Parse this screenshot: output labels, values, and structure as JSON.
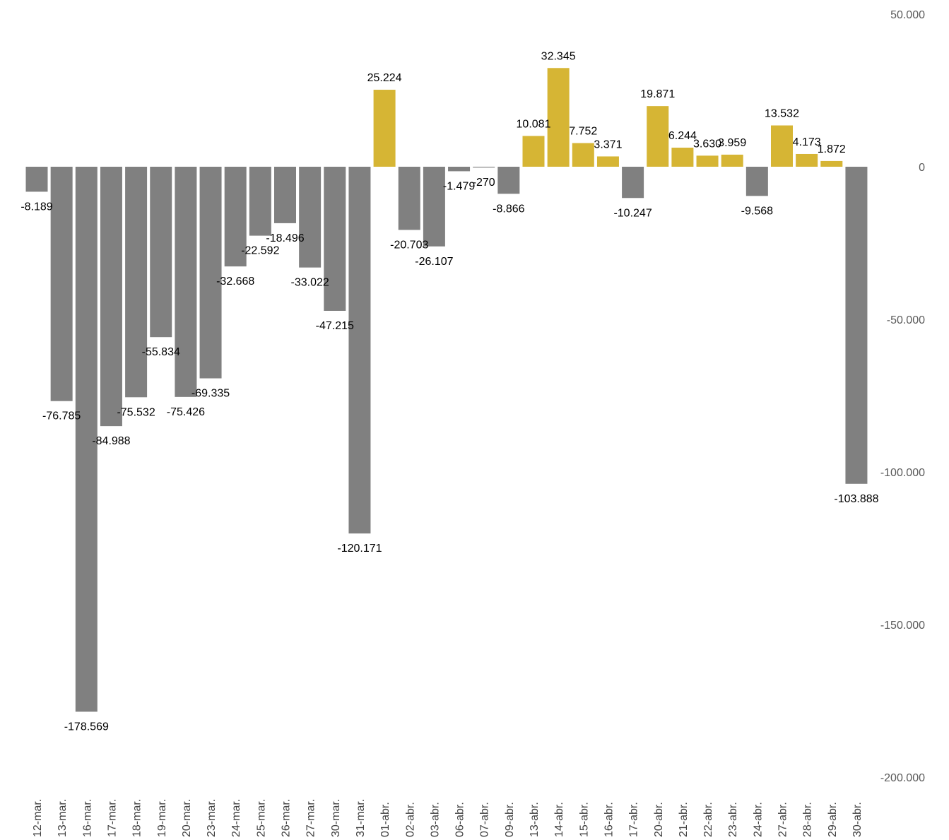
{
  "chart_data": {
    "type": "bar",
    "title": "",
    "xlabel": "",
    "ylabel": "",
    "ylim": [
      -200000,
      50000
    ],
    "yticks": [
      50000,
      0,
      -50000,
      -100000,
      -150000,
      -200000
    ],
    "ytick_labels": [
      "50.000",
      "0",
      "-50.000",
      "-100.000",
      "-150.000",
      "-200.000"
    ],
    "y_axis_position": "right",
    "grid": false,
    "legend": "none",
    "colors": {
      "positive": "#D6B534",
      "negative": "#808080"
    },
    "categories": [
      "12-mar.",
      "13-mar.",
      "16-mar.",
      "17-mar.",
      "18-mar.",
      "19-mar.",
      "20-mar.",
      "23-mar.",
      "24-mar.",
      "25-mar.",
      "26-mar.",
      "27-mar.",
      "30-mar.",
      "31-mar.",
      "01-abr.",
      "02-abr.",
      "03-abr.",
      "06-abr.",
      "07-abr.",
      "09-abr.",
      "13-abr.",
      "14-abr.",
      "15-abr.",
      "16-abr.",
      "17-abr.",
      "20-abr.",
      "21-abr.",
      "22-abr.",
      "23-abr.",
      "24-abr.",
      "27-abr.",
      "28-abr.",
      "29-abr.",
      "30-abr."
    ],
    "values": [
      -8189,
      -76785,
      -178569,
      -84988,
      -75532,
      -55834,
      -75426,
      -69335,
      -32668,
      -22592,
      -18496,
      -33022,
      -47215,
      -120171,
      25224,
      -20703,
      -26107,
      -1479,
      -270,
      -8866,
      10081,
      32345,
      7752,
      3371,
      -10247,
      19871,
      6244,
      3630,
      3959,
      -9568,
      13532,
      4173,
      1872,
      -103888
    ],
    "data_labels": [
      "-8.189",
      "-76.785",
      "-178.569",
      "-84.988",
      "-75.532",
      "-55.834",
      "-75.426",
      "-69.335",
      "-32.668",
      "-22.592",
      "-18.496",
      "-33.022",
      "-47.215",
      "-120.171",
      "25.224",
      "-20.703",
      "-26.107",
      "-1.479",
      "-270",
      "-8.866",
      "10.081",
      "32.345",
      "7.752",
      "3.371",
      "-10.247",
      "19.871",
      "6.244",
      "3.630",
      "3.959",
      "-9.568",
      "13.532",
      "4.173",
      "1.872",
      "-103.888"
    ]
  }
}
